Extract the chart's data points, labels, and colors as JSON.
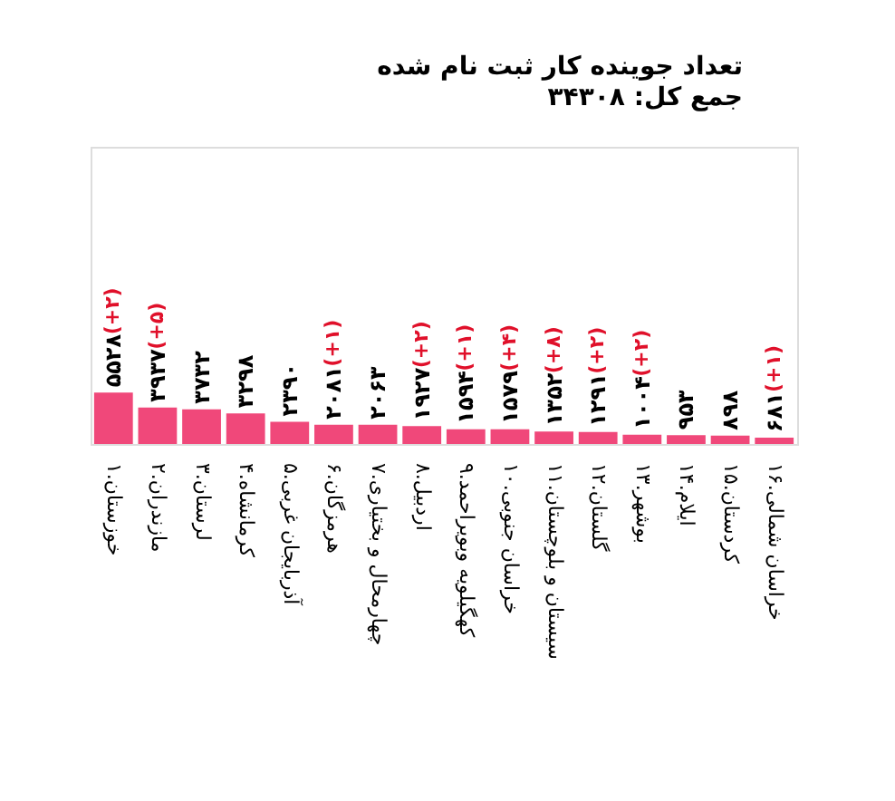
{
  "chart_data": {
    "type": "bar",
    "title": "تعداد جوینده کار ثبت نام شده",
    "subtitle": "جمع کل: ۳۴۳۰۸",
    "categories": [
      "۱.خوزستان",
      "۲.مازندران",
      "۳.لرستان",
      "۴.کرمانشاه",
      "۵.آذربایجان غربی",
      "۶.هرمزگان",
      "۷.چهارمحال و بختیاری",
      "۸.اردبیل",
      "۹.کهگیلویه وبویراحمد",
      "۱۰.خراسان جنوبی",
      "۱۱.سیستان و بلوچستان",
      "۱۲.گلستان",
      "۱۳.بوشهر",
      "۱۴.ایلام",
      "۱۵.کردستان",
      "۱۶.خراسان شمالی"
    ],
    "values": [
      5528,
      3937,
      3732,
      3298,
      2390,
      2081,
      2063,
      1927,
      1594,
      1579,
      1352,
      1291,
      1004,
      953,
      898,
      681
    ],
    "value_labels": [
      "۵۵۲۸",
      "۳۹۳۷",
      "۳۷۳۲",
      "۳۲۹۸",
      "۲۳۹۰",
      "۲۰۸۱",
      "۲۰۶۳",
      "۱۹۲۷",
      "۱۵۹۴",
      "۱۵۷۹",
      "۱۳۵۲",
      "۱۲۹۱",
      "۱۰۰۴",
      "۹۵۳",
      "۸۹۸",
      "۶۸۱"
    ],
    "color": "#f0487a",
    "ylim": [
      0,
      32000
    ],
    "tick_labels": "x",
    "grid": false,
    "annotations": [
      {
        "text": "(+۲)",
        "x": "۱.خوزستان",
        "y": 5528
      },
      {
        "text": "(+۵)",
        "x": "۲.مازندران",
        "y": 3937
      },
      {
        "text": "(+۱)",
        "x": "۶.هرمزگان",
        "y": 2081
      },
      {
        "text": "(+۲)",
        "x": "۸.اردبیل",
        "y": 1927
      },
      {
        "text": "(+۱)",
        "x": "۹.کهگیلویه وبویراحمد",
        "y": 1594
      },
      {
        "text": "(+۴)",
        "x": "۱۰.خراسان جنوبی",
        "y": 1579
      },
      {
        "text": "(+۸)",
        "x": "۱۱.سیستان و بلوچستان",
        "y": 1352
      },
      {
        "text": "(+۲)",
        "x": "۱۲.گلستان",
        "y": 1291
      },
      {
        "text": "(+۲)",
        "x": "۱۳.بوشهر",
        "y": 1004
      },
      {
        "text": "(+۱)",
        "x": "۱۶.خراسان شمالی",
        "y": 681
      }
    ]
  }
}
